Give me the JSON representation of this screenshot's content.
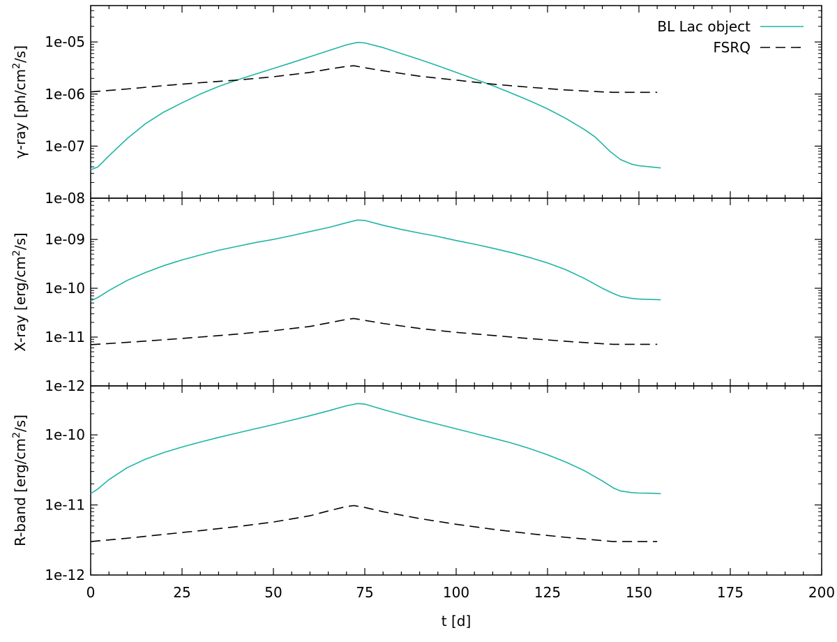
{
  "chart_data": {
    "type": "line",
    "x_axis": {
      "label": "t [d]",
      "range": [
        0,
        200
      ],
      "ticks": [
        0,
        25,
        50,
        75,
        100,
        125,
        150,
        175,
        200
      ],
      "tick_labels": [
        "0",
        "25",
        "50",
        "75",
        "100",
        "125",
        "150",
        "175",
        "200"
      ],
      "shared": true
    },
    "legend": {
      "placement": "top-right",
      "entries": [
        {
          "name": "BL Lac object",
          "style": "solid",
          "color": "#1fb5a3"
        },
        {
          "name": "FSRQ",
          "style": "dashed",
          "color": "#000000"
        }
      ]
    },
    "grid": false,
    "panels": [
      {
        "ylabel_main": "γ-ray [ph/cm",
        "ylabel_sup": "2",
        "ylabel_end": "/s]",
        "yscale": "log",
        "ylim": [
          1e-08,
          5e-05
        ],
        "ticks": [
          1e-08,
          1e-07,
          1e-06,
          1e-05
        ],
        "tick_labels": [
          "1e-08",
          "1e-07",
          "1e-06",
          "1e-05"
        ],
        "series": [
          {
            "name": "BL Lac object",
            "x": [
              0,
              2,
              5,
              10,
              15,
              20,
              25,
              30,
              35,
              40,
              45,
              50,
              55,
              60,
              65,
              70,
              73,
              75,
              80,
              85,
              90,
              95,
              100,
              105,
              110,
              115,
              120,
              125,
              130,
              135,
              138,
              140,
              142,
              145,
              148,
              150,
              153,
              156
            ],
            "y": [
              3.5e-08,
              4e-08,
              6.5e-08,
              1.4e-07,
              2.7e-07,
              4.5e-07,
              6.8e-07,
              1e-06,
              1.4e-06,
              1.85e-06,
              2.4e-06,
              3.1e-06,
              4e-06,
              5.2e-06,
              6.8e-06,
              8.8e-06,
              9.8e-06,
              9.6e-06,
              7.8e-06,
              6e-06,
              4.6e-06,
              3.5e-06,
              2.6e-06,
              1.95e-06,
              1.45e-06,
              1.05e-06,
              7.5e-07,
              5.2e-07,
              3.4e-07,
              2.1e-07,
              1.5e-07,
              1.1e-07,
              8e-08,
              5.5e-08,
              4.5e-08,
              4.2e-08,
              4e-08,
              3.8e-08
            ]
          },
          {
            "name": "FSRQ",
            "x": [
              0,
              10,
              20,
              30,
              40,
              50,
              60,
              65,
              70,
              72,
              75,
              80,
              90,
              100,
              110,
              120,
              130,
              140,
              143,
              150,
              155
            ],
            "y": [
              1.1e-06,
              1.25e-06,
              1.45e-06,
              1.65e-06,
              1.85e-06,
              2.15e-06,
              2.6e-06,
              3e-06,
              3.4e-06,
              3.5e-06,
              3.2e-06,
              2.8e-06,
              2.2e-06,
              1.85e-06,
              1.55e-06,
              1.35e-06,
              1.2e-06,
              1.1e-06,
              1.08e-06,
              1.08e-06,
              1.08e-06
            ]
          }
        ]
      },
      {
        "ylabel_main": "X-ray [erg/cm",
        "ylabel_sup": "2",
        "ylabel_end": "/s]",
        "yscale": "log",
        "ylim": [
          1e-12,
          7e-09
        ],
        "ticks": [
          1e-12,
          1e-11,
          1e-10,
          1e-09
        ],
        "tick_labels": [
          "1e-12",
          "1e-11",
          "1e-10",
          "1e-09"
        ],
        "series": [
          {
            "name": "BL Lac object",
            "x": [
              0,
              2,
              5,
              10,
              15,
              20,
              25,
              30,
              35,
              40,
              45,
              50,
              55,
              60,
              65,
              70,
              73,
              75,
              80,
              85,
              90,
              95,
              100,
              105,
              110,
              115,
              120,
              125,
              130,
              135,
              140,
              143,
              145,
              148,
              150,
              153,
              156
            ],
            "y": [
              5.5e-11,
              6.5e-11,
              9e-11,
              1.45e-10,
              2.1e-10,
              2.9e-10,
              3.8e-10,
              4.8e-10,
              6e-10,
              7.2e-10,
              8.6e-10,
              1e-09,
              1.2e-09,
              1.45e-09,
              1.75e-09,
              2.2e-09,
              2.5e-09,
              2.45e-09,
              1.95e-09,
              1.6e-09,
              1.35e-09,
              1.15e-09,
              9.5e-10,
              8e-10,
              6.6e-10,
              5.4e-10,
              4.3e-10,
              3.3e-10,
              2.4e-10,
              1.6e-10,
              1e-10,
              7.8e-11,
              6.8e-11,
              6.2e-11,
              6e-11,
              5.9e-11,
              5.8e-11
            ]
          },
          {
            "name": "FSRQ",
            "x": [
              0,
              10,
              20,
              30,
              40,
              50,
              60,
              65,
              70,
              72,
              75,
              80,
              90,
              100,
              110,
              120,
              130,
              140,
              143,
              150,
              155
            ],
            "y": [
              7e-12,
              7.8e-12,
              8.8e-12,
              1e-11,
              1.15e-11,
              1.35e-11,
              1.65e-11,
              1.95e-11,
              2.3e-11,
              2.4e-11,
              2.2e-11,
              1.9e-11,
              1.5e-11,
              1.25e-11,
              1.08e-11,
              9.3e-12,
              8.2e-12,
              7.3e-12,
              7.1e-12,
              7.1e-12,
              7.1e-12
            ]
          }
        ]
      },
      {
        "ylabel_main": "R-band [erg/cm",
        "ylabel_sup": "2",
        "ylabel_end": "/s]",
        "yscale": "log",
        "ylim": [
          1e-12,
          5e-10
        ],
        "ticks": [
          1e-12,
          1e-11,
          1e-10
        ],
        "tick_labels": [
          "1e-12",
          "1e-11",
          "1e-10"
        ],
        "series": [
          {
            "name": "BL Lac object",
            "x": [
              0,
              2,
              5,
              10,
              15,
              20,
              25,
              30,
              35,
              40,
              45,
              50,
              55,
              60,
              65,
              70,
              73,
              75,
              80,
              85,
              90,
              95,
              100,
              105,
              110,
              115,
              120,
              125,
              130,
              135,
              140,
              143,
              145,
              148,
              150,
              153,
              156
            ],
            "y": [
              1.45e-11,
              1.7e-11,
              2.3e-11,
              3.4e-11,
              4.5e-11,
              5.6e-11,
              6.7e-11,
              7.9e-11,
              9.2e-11,
              1.06e-10,
              1.22e-10,
              1.4e-10,
              1.62e-10,
              1.88e-10,
              2.2e-10,
              2.6e-10,
              2.8e-10,
              2.75e-10,
              2.3e-10,
              1.95e-10,
              1.65e-10,
              1.42e-10,
              1.22e-10,
              1.05e-10,
              9e-11,
              7.7e-11,
              6.4e-11,
              5.2e-11,
              4.1e-11,
              3.1e-11,
              2.2e-11,
              1.75e-11,
              1.58e-11,
              1.5e-11,
              1.48e-11,
              1.47e-11,
              1.45e-11
            ]
          },
          {
            "name": "FSRQ",
            "x": [
              0,
              10,
              20,
              30,
              40,
              50,
              60,
              65,
              70,
              72,
              75,
              80,
              90,
              100,
              110,
              120,
              130,
              140,
              143,
              150,
              155
            ],
            "y": [
              3e-12,
              3.35e-12,
              3.8e-12,
              4.3e-12,
              4.9e-12,
              5.7e-12,
              7e-12,
              8.2e-12,
              9.5e-12,
              9.8e-12,
              9.2e-12,
              8e-12,
              6.4e-12,
              5.3e-12,
              4.5e-12,
              3.9e-12,
              3.45e-12,
              3.1e-12,
              3e-12,
              3e-12,
              3e-12
            ]
          }
        ]
      }
    ]
  }
}
